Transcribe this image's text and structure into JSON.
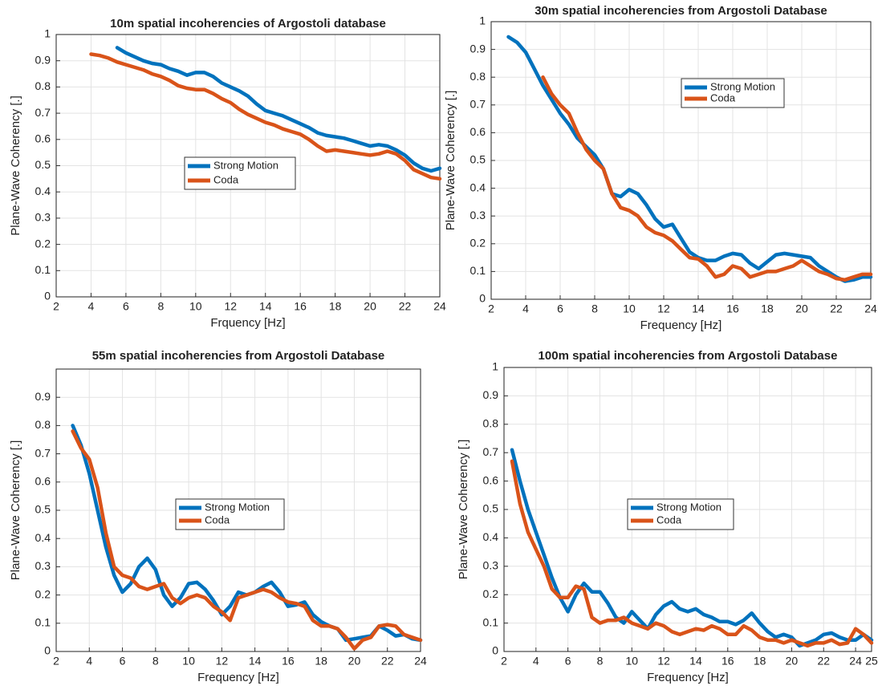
{
  "chart_data": [
    {
      "type": "line",
      "title": "10m spatial incoherencies of Argostoli database",
      "xlabel": "Frquency [Hz]",
      "ylabel": "Plane-Wave Coherency [.]",
      "x": [
        4,
        4.5,
        5,
        5.5,
        6,
        6.5,
        7,
        7.5,
        8,
        8.5,
        9,
        9.5,
        10,
        10.5,
        11,
        11.5,
        12,
        12.5,
        13,
        13.5,
        14,
        14.5,
        15,
        15.5,
        16,
        16.5,
        17,
        17.5,
        18,
        18.5,
        19,
        19.5,
        20,
        20.5,
        21,
        21.5,
        22,
        22.5,
        23,
        23.5,
        24
      ],
      "series": [
        {
          "name": "Strong Motion",
          "color": "#0072bd",
          "values": [
            null,
            null,
            null,
            0.95,
            0.93,
            0.915,
            0.9,
            0.89,
            0.885,
            0.87,
            0.86,
            0.845,
            0.855,
            0.855,
            0.84,
            0.815,
            0.8,
            0.785,
            0.765,
            0.735,
            0.71,
            0.7,
            0.69,
            0.675,
            0.66,
            0.645,
            0.625,
            0.615,
            0.61,
            0.605,
            0.595,
            0.585,
            0.575,
            0.58,
            0.575,
            0.56,
            0.54,
            0.51,
            0.49,
            0.48,
            0.49
          ]
        },
        {
          "name": "Coda",
          "color": "#d95319",
          "values": [
            0.925,
            0.92,
            0.91,
            0.895,
            0.885,
            0.875,
            0.865,
            0.85,
            0.84,
            0.825,
            0.805,
            0.795,
            0.79,
            0.79,
            0.775,
            0.755,
            0.74,
            0.715,
            0.695,
            0.68,
            0.665,
            0.655,
            0.64,
            0.63,
            0.62,
            0.6,
            0.575,
            0.555,
            0.56,
            0.555,
            0.55,
            0.545,
            0.54,
            0.545,
            0.555,
            0.545,
            0.52,
            0.485,
            0.47,
            0.455,
            0.45
          ]
        }
      ],
      "xlim": [
        2,
        24
      ],
      "xticks": [
        2,
        4,
        6,
        8,
        10,
        12,
        14,
        16,
        18,
        20,
        22,
        24
      ],
      "ylim": [
        0,
        1
      ],
      "yticks": [
        0,
        0.1,
        0.2,
        0.3,
        0.4,
        0.5,
        0.6,
        0.7,
        0.8,
        0.9,
        1
      ],
      "grid": true
    },
    {
      "type": "line",
      "title": "30m spatial incoherencies from Argostoli Database",
      "xlabel": "Frequency [Hz]",
      "ylabel": "Plane-Wave Coherency [.]",
      "x": [
        3,
        3.5,
        4,
        4.5,
        5,
        5.5,
        6,
        6.5,
        7,
        7.5,
        8,
        8.5,
        9,
        9.5,
        10,
        10.5,
        11,
        11.5,
        12,
        12.5,
        13,
        13.5,
        14,
        14.5,
        15,
        15.5,
        16,
        16.5,
        17,
        17.5,
        18,
        18.5,
        19,
        19.5,
        20,
        20.5,
        21,
        21.5,
        22,
        22.5,
        23,
        23.5,
        24
      ],
      "series": [
        {
          "name": "Strong Motion",
          "color": "#0072bd",
          "values": [
            0.945,
            0.925,
            0.89,
            0.83,
            0.77,
            0.72,
            0.67,
            0.63,
            0.58,
            0.55,
            0.52,
            0.47,
            0.38,
            0.37,
            0.395,
            0.38,
            0.34,
            0.29,
            0.26,
            0.27,
            0.22,
            0.17,
            0.15,
            0.14,
            0.14,
            0.155,
            0.165,
            0.16,
            0.13,
            0.11,
            0.135,
            0.16,
            0.165,
            0.16,
            0.155,
            0.15,
            0.12,
            0.1,
            0.08,
            0.065,
            0.07,
            0.08,
            0.08
          ]
        },
        {
          "name": "Coda",
          "color": "#d95319",
          "values": [
            null,
            null,
            null,
            null,
            0.8,
            0.74,
            0.7,
            0.67,
            0.6,
            0.54,
            0.5,
            0.47,
            0.38,
            0.33,
            0.32,
            0.3,
            0.26,
            0.24,
            0.23,
            0.21,
            0.18,
            0.15,
            0.145,
            0.12,
            0.08,
            0.09,
            0.12,
            0.11,
            0.08,
            0.09,
            0.1,
            0.1,
            0.11,
            0.12,
            0.14,
            0.12,
            0.1,
            0.09,
            0.075,
            0.07,
            0.08,
            0.09,
            0.09
          ]
        }
      ],
      "xlim": [
        2,
        24
      ],
      "xticks": [
        2,
        4,
        6,
        8,
        10,
        12,
        14,
        16,
        18,
        20,
        22,
        24
      ],
      "ylim": [
        0,
        1
      ],
      "yticks": [
        0,
        0.1,
        0.2,
        0.3,
        0.4,
        0.5,
        0.6,
        0.7,
        0.8,
        0.9,
        1
      ],
      "grid": true
    },
    {
      "type": "line",
      "title": "55m spatial incoherencies from Argostoli Database",
      "xlabel": "Frequency [Hz]",
      "ylabel": "Plane-Wave Coherency [.]",
      "x": [
        3,
        3.5,
        4,
        4.5,
        5,
        5.5,
        6,
        6.5,
        7,
        7.5,
        8,
        8.5,
        9,
        9.5,
        10,
        10.5,
        11,
        11.5,
        12,
        12.5,
        13,
        13.5,
        14,
        14.5,
        15,
        15.5,
        16,
        16.5,
        17,
        17.5,
        18,
        18.5,
        19,
        19.5,
        20,
        20.5,
        21,
        21.5,
        22,
        22.5,
        23,
        23.5,
        24
      ],
      "series": [
        {
          "name": "Strong Motion",
          "color": "#0072bd",
          "values": [
            0.8,
            0.73,
            0.63,
            0.5,
            0.37,
            0.27,
            0.21,
            0.24,
            0.3,
            0.33,
            0.29,
            0.2,
            0.16,
            0.19,
            0.24,
            0.245,
            0.22,
            0.18,
            0.13,
            0.16,
            0.21,
            0.2,
            0.21,
            0.23,
            0.245,
            0.21,
            0.16,
            0.165,
            0.175,
            0.13,
            0.105,
            0.09,
            0.08,
            0.04,
            0.045,
            0.05,
            0.055,
            0.09,
            0.075,
            0.055,
            0.06,
            0.045,
            0.04
          ]
        },
        {
          "name": "Coda",
          "color": "#d95319",
          "values": [
            0.78,
            0.72,
            0.68,
            0.58,
            0.42,
            0.3,
            0.27,
            0.26,
            0.23,
            0.22,
            0.23,
            0.24,
            0.19,
            0.17,
            0.19,
            0.2,
            0.19,
            0.16,
            0.14,
            0.11,
            0.19,
            0.2,
            0.21,
            0.22,
            0.21,
            0.19,
            0.175,
            0.17,
            0.16,
            0.11,
            0.09,
            0.09,
            0.08,
            0.05,
            0.01,
            0.04,
            0.05,
            0.09,
            0.095,
            0.09,
            0.06,
            0.05,
            0.04
          ]
        }
      ],
      "xlim": [
        2,
        24
      ],
      "xticks": [
        2,
        4,
        6,
        8,
        10,
        12,
        14,
        16,
        18,
        20,
        22,
        24
      ],
      "ylim": [
        0,
        1
      ],
      "yticks": [
        0,
        0.1,
        0.2,
        0.3,
        0.4,
        0.5,
        0.6,
        0.7,
        0.8,
        0.9
      ],
      "grid": true
    },
    {
      "type": "line",
      "title": "100m spatial incoherencies from Argostoli Database",
      "xlabel": "Frequency [Hz]",
      "ylabel": "Plane-Wave Coherency [.]",
      "x": [
        2.5,
        3,
        3.5,
        4,
        4.5,
        5,
        5.5,
        6,
        6.5,
        7,
        7.5,
        8,
        8.5,
        9,
        9.5,
        10,
        10.5,
        11,
        11.5,
        12,
        12.5,
        13,
        13.5,
        14,
        14.5,
        15,
        15.5,
        16,
        16.5,
        17,
        17.5,
        18,
        18.5,
        19,
        19.5,
        20,
        20.5,
        21,
        21.5,
        22,
        22.5,
        23,
        23.5,
        24,
        24.5,
        25
      ],
      "series": [
        {
          "name": "Strong Motion",
          "color": "#0072bd",
          "values": [
            0.71,
            0.6,
            0.5,
            0.42,
            0.34,
            0.26,
            0.19,
            0.14,
            0.2,
            0.24,
            0.21,
            0.21,
            0.17,
            0.12,
            0.1,
            0.14,
            0.11,
            0.08,
            0.13,
            0.16,
            0.175,
            0.15,
            0.14,
            0.15,
            0.13,
            0.12,
            0.105,
            0.105,
            0.095,
            0.11,
            0.135,
            0.1,
            0.07,
            0.05,
            0.06,
            0.05,
            0.02,
            0.03,
            0.04,
            0.06,
            0.065,
            0.05,
            0.04,
            0.04,
            0.06,
            0.04
          ]
        },
        {
          "name": "Coda",
          "color": "#d95319",
          "values": [
            0.67,
            0.52,
            0.42,
            0.36,
            0.3,
            0.22,
            0.19,
            0.19,
            0.23,
            0.22,
            0.12,
            0.1,
            0.11,
            0.11,
            0.12,
            0.1,
            0.09,
            0.08,
            0.1,
            0.09,
            0.07,
            0.06,
            0.07,
            0.08,
            0.075,
            0.09,
            0.08,
            0.06,
            0.06,
            0.09,
            0.075,
            0.05,
            0.04,
            0.04,
            0.03,
            0.04,
            0.03,
            0.02,
            0.03,
            0.03,
            0.04,
            0.025,
            0.03,
            0.08,
            0.06,
            0.03
          ]
        }
      ],
      "xlim": [
        2,
        25
      ],
      "xticks": [
        2,
        4,
        6,
        8,
        10,
        12,
        14,
        16,
        18,
        20,
        22,
        24,
        25
      ],
      "ylim": [
        0,
        1
      ],
      "yticks": [
        0,
        0.1,
        0.2,
        0.3,
        0.4,
        0.5,
        0.6,
        0.7,
        0.8,
        0.9,
        1
      ],
      "grid": true
    }
  ]
}
